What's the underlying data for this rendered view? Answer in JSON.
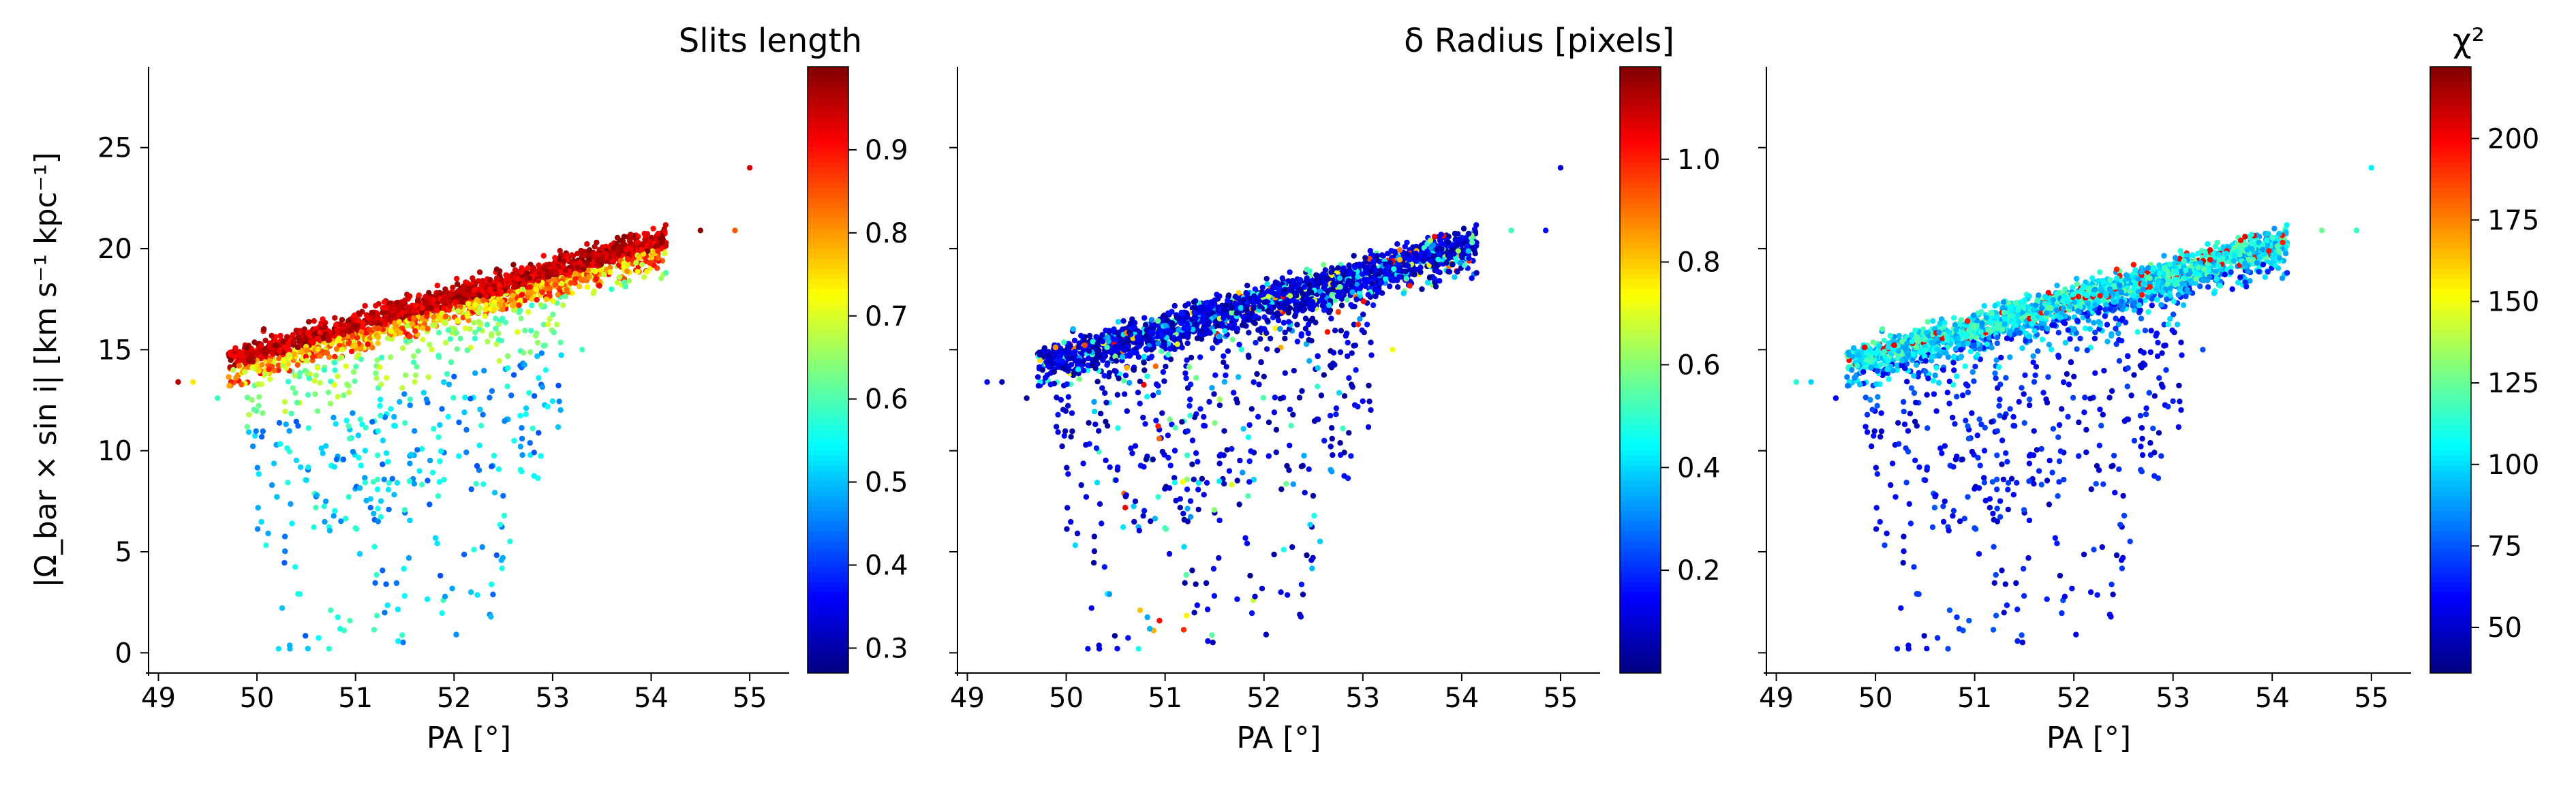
{
  "chart_data": [
    {
      "type": "scatter",
      "title": "",
      "xlabel": "PA [°]",
      "ylabel": "|Ω_bar × sin i|   [km s⁻¹ kpc⁻¹]",
      "xlim": [
        48.9,
        55.4
      ],
      "ylim": [
        -1,
        29
      ],
      "xticks": [
        "49",
        "50",
        "51",
        "52",
        "53",
        "54",
        "55"
      ],
      "yticks": [
        "0",
        "5",
        "10",
        "15",
        "20",
        "25"
      ],
      "colorbar": {
        "label": "Slits length",
        "range": [
          0.27,
          1.0
        ],
        "ticks": [
          "0.3",
          "0.4",
          "0.5",
          "0.6",
          "0.7",
          "0.8",
          "0.9"
        ],
        "colormap": "jet"
      },
      "colour_mode": "slits",
      "seed": 7
    },
    {
      "type": "scatter",
      "title": "",
      "xlabel": "PA [°]",
      "ylabel": "",
      "xlim": [
        48.9,
        55.4
      ],
      "ylim": [
        -1,
        29
      ],
      "xticks": [
        "49",
        "50",
        "51",
        "52",
        "53",
        "54",
        "55"
      ],
      "yticks": [],
      "colorbar": {
        "label": "δ Radius [pixels]",
        "range": [
          0.0,
          1.18
        ],
        "ticks": [
          "0.2",
          "0.4",
          "0.6",
          "0.8",
          "1.0"
        ],
        "colormap": "jet"
      },
      "colour_mode": "radius",
      "seed": 7
    },
    {
      "type": "scatter",
      "title": "",
      "xlabel": "PA [°]",
      "ylabel": "",
      "xlim": [
        48.9,
        55.4
      ],
      "ylim": [
        -1,
        29
      ],
      "xticks": [
        "49",
        "50",
        "51",
        "52",
        "53",
        "54",
        "55"
      ],
      "yticks": [],
      "colorbar": {
        "label": "χ²",
        "range": [
          36,
          222
        ],
        "ticks": [
          "50",
          "75",
          "100",
          "125",
          "150",
          "175",
          "200"
        ],
        "colormap": "jet"
      },
      "colour_mode": "chi2",
      "seed": 7
    }
  ],
  "trend": {
    "x": [
      49.5,
      54.1
    ],
    "y": [
      14.4,
      20.6
    ]
  },
  "n_points": 2600
}
